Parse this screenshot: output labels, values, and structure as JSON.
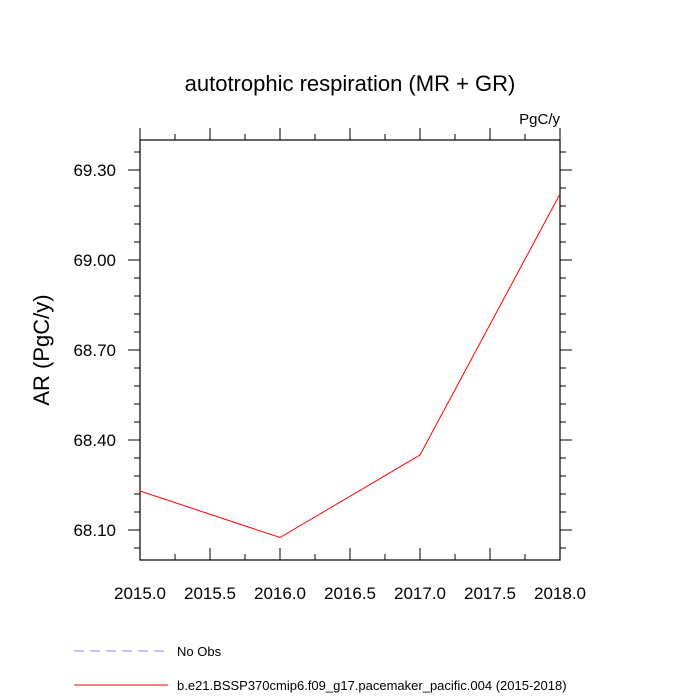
{
  "chart_data": {
    "type": "line",
    "title": "autotrophic respiration (MR + GR)",
    "units_label": "PgC/y",
    "ylabel": "AR  (PgC/y)",
    "xlabel": "",
    "xlim": [
      2015.0,
      2018.0
    ],
    "ylim": [
      68.0,
      69.4
    ],
    "x_ticks": [
      2015.0,
      2015.5,
      2016.0,
      2016.5,
      2017.0,
      2017.5,
      2018.0
    ],
    "x_tick_labels": [
      "2015.0",
      "2015.5",
      "2016.0",
      "2016.5",
      "2017.0",
      "2017.5",
      "2018.0"
    ],
    "y_ticks": [
      68.1,
      68.4,
      68.7,
      69.0,
      69.3
    ],
    "y_tick_labels": [
      "68.10",
      "68.40",
      "68.70",
      "69.00",
      "69.30"
    ],
    "y_minor_step": 0.06,
    "x_minor_step": 0.25,
    "grid": false,
    "series": [
      {
        "name": "b.e21.BSSP370cmip6.f09_g17.pacemaker_pacific.004 (2015-2018)",
        "color": "#ff0000",
        "dash": "solid",
        "x": [
          2015,
          2016,
          2017,
          2018
        ],
        "values": [
          68.23,
          68.075,
          68.35,
          69.22
        ]
      }
    ],
    "legend": [
      {
        "label": "No Obs",
        "color": "#8a8aff",
        "dash": "dashed"
      },
      {
        "label": "b.e21.BSSP370cmip6.f09_g17.pacemaker_pacific.004 (2015-2018)",
        "color": "#ff0000",
        "dash": "solid"
      }
    ],
    "legend_position": "bottom-left"
  }
}
